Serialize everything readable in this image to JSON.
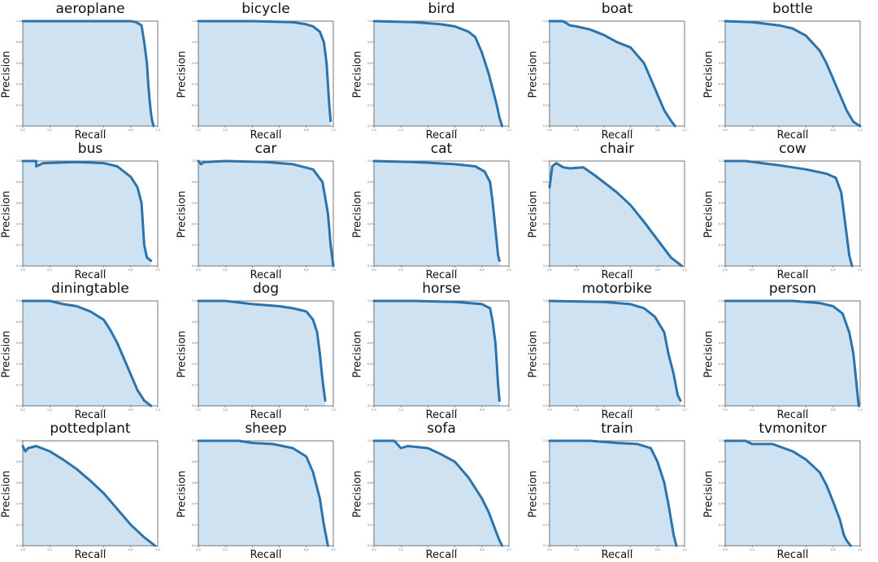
{
  "chart_data": [
    {
      "type": "area",
      "title": "aeroplane",
      "xlabel": "Recall",
      "ylabel": "Precision",
      "xlim": [
        0,
        1
      ],
      "ylim": [
        0,
        1
      ],
      "xticks": [
        "0.0",
        "0.2",
        "0.4",
        "0.6",
        "0.8",
        "1.0"
      ],
      "yticks": [
        "0.0",
        "0.2",
        "0.4",
        "0.6",
        "0.8",
        "1.0"
      ],
      "x": [
        0,
        0.5,
        0.8,
        0.84,
        0.88,
        0.9,
        0.92,
        0.93,
        0.94,
        0.95,
        0.96,
        0.97
      ],
      "y": [
        1.0,
        1.0,
        1.0,
        0.99,
        0.96,
        0.8,
        0.6,
        0.4,
        0.25,
        0.12,
        0.04,
        0.0
      ]
    },
    {
      "type": "area",
      "title": "bicycle",
      "xlabel": "Recall",
      "ylabel": "Precision",
      "xlim": [
        0,
        1
      ],
      "ylim": [
        0,
        1
      ],
      "xticks": [
        "0.0",
        "0.2",
        "0.4",
        "0.6",
        "0.8",
        "1.0"
      ],
      "yticks": [
        "0.0",
        "0.2",
        "0.4",
        "0.6",
        "0.8",
        "1.0"
      ],
      "x": [
        0,
        0.4,
        0.7,
        0.8,
        0.85,
        0.9,
        0.93,
        0.95,
        0.96,
        0.97,
        0.98
      ],
      "y": [
        1.0,
        1.0,
        0.99,
        0.97,
        0.95,
        0.9,
        0.8,
        0.6,
        0.4,
        0.2,
        0.05
      ]
    },
    {
      "type": "area",
      "title": "bird",
      "xlabel": "Recall",
      "ylabel": "Precision",
      "xlim": [
        0,
        1
      ],
      "ylim": [
        0,
        1
      ],
      "xticks": [
        "0.0",
        "0.2",
        "0.4",
        "0.6",
        "0.8",
        "1.0"
      ],
      "yticks": [
        "0.0",
        "0.2",
        "0.4",
        "0.6",
        "0.8",
        "1.0"
      ],
      "x": [
        0,
        0.3,
        0.5,
        0.6,
        0.7,
        0.75,
        0.8,
        0.85,
        0.88,
        0.91,
        0.93,
        0.95
      ],
      "y": [
        1.0,
        0.99,
        0.97,
        0.95,
        0.9,
        0.85,
        0.7,
        0.5,
        0.35,
        0.2,
        0.08,
        0.0
      ]
    },
    {
      "type": "area",
      "title": "boat",
      "xlabel": "Recall",
      "ylabel": "Precision",
      "xlim": [
        0,
        1
      ],
      "ylim": [
        0,
        1
      ],
      "xticks": [
        "0.0",
        "0.2",
        "0.4",
        "0.6",
        "0.8",
        "1.0"
      ],
      "yticks": [
        "0.0",
        "0.2",
        "0.4",
        "0.6",
        "0.8",
        "1.0"
      ],
      "x": [
        0,
        0.1,
        0.15,
        0.2,
        0.3,
        0.4,
        0.5,
        0.6,
        0.7,
        0.75,
        0.8,
        0.85,
        0.9,
        0.93
      ],
      "y": [
        1.0,
        1.0,
        0.96,
        0.95,
        0.92,
        0.87,
        0.8,
        0.75,
        0.6,
        0.45,
        0.3,
        0.15,
        0.05,
        0.0
      ]
    },
    {
      "type": "area",
      "title": "bottle",
      "xlabel": "Recall",
      "ylabel": "Precision",
      "xlim": [
        0,
        1
      ],
      "ylim": [
        0,
        1
      ],
      "xticks": [
        "0.0",
        "0.2",
        "0.4",
        "0.6",
        "0.8",
        "1.0"
      ],
      "yticks": [
        "0.0",
        "0.2",
        "0.4",
        "0.6",
        "0.8",
        "1.0"
      ],
      "x": [
        0,
        0.2,
        0.4,
        0.5,
        0.6,
        0.7,
        0.75,
        0.8,
        0.85,
        0.9,
        0.95,
        1.0
      ],
      "y": [
        1.0,
        0.99,
        0.96,
        0.93,
        0.86,
        0.72,
        0.6,
        0.45,
        0.3,
        0.15,
        0.04,
        0.0
      ]
    },
    {
      "type": "area",
      "title": "bus",
      "xlabel": "Recall",
      "ylabel": "Precision",
      "xlim": [
        0,
        1
      ],
      "ylim": [
        0,
        1
      ],
      "xticks": [
        "0.0",
        "0.2",
        "0.4",
        "0.6",
        "0.8",
        "1.0"
      ],
      "yticks": [
        "0.0",
        "0.2",
        "0.4",
        "0.6",
        "0.8",
        "1.0"
      ],
      "x": [
        0,
        0.1,
        0.1,
        0.15,
        0.4,
        0.6,
        0.7,
        0.8,
        0.85,
        0.88,
        0.9,
        0.92,
        0.95
      ],
      "y": [
        1.0,
        1.0,
        0.95,
        0.98,
        0.99,
        0.98,
        0.95,
        0.85,
        0.75,
        0.6,
        0.2,
        0.08,
        0.05
      ]
    },
    {
      "type": "area",
      "title": "car",
      "xlabel": "Recall",
      "ylabel": "Precision",
      "xlim": [
        0,
        1
      ],
      "ylim": [
        0,
        1
      ],
      "xticks": [
        "0.0",
        "0.2",
        "0.4",
        "0.6",
        "0.8",
        "1.0"
      ],
      "yticks": [
        "0.0",
        "0.2",
        "0.4",
        "0.6",
        "0.8",
        "1.0"
      ],
      "x": [
        0,
        0.02,
        0.04,
        0.2,
        0.5,
        0.7,
        0.85,
        0.92,
        0.96,
        0.98,
        1.0
      ],
      "y": [
        1.0,
        0.97,
        0.99,
        1.0,
        0.99,
        0.97,
        0.92,
        0.8,
        0.5,
        0.2,
        0.0
      ]
    },
    {
      "type": "area",
      "title": "cat",
      "xlabel": "Recall",
      "ylabel": "Precision",
      "xlim": [
        0,
        1
      ],
      "ylim": [
        0,
        1
      ],
      "xticks": [
        "0.0",
        "0.2",
        "0.4",
        "0.6",
        "0.8",
        "1.0"
      ],
      "yticks": [
        "0.0",
        "0.2",
        "0.4",
        "0.6",
        "0.8",
        "1.0"
      ],
      "x": [
        0,
        0.3,
        0.6,
        0.75,
        0.82,
        0.86,
        0.88,
        0.9,
        0.92,
        0.93
      ],
      "y": [
        1.0,
        0.99,
        0.97,
        0.95,
        0.9,
        0.8,
        0.6,
        0.35,
        0.1,
        0.05
      ]
    },
    {
      "type": "area",
      "title": "chair",
      "xlabel": "Recall",
      "ylabel": "Precision",
      "xlim": [
        0,
        1
      ],
      "ylim": [
        0,
        1
      ],
      "xticks": [
        "0.0",
        "0.2",
        "0.4",
        "0.6",
        "0.8",
        "1.0"
      ],
      "yticks": [
        "0.0",
        "0.2",
        "0.4",
        "0.6",
        "0.8",
        "1.0"
      ],
      "x": [
        0,
        0.02,
        0.05,
        0.1,
        0.15,
        0.25,
        0.35,
        0.5,
        0.6,
        0.7,
        0.8,
        0.9,
        0.98
      ],
      "y": [
        0.75,
        0.95,
        0.98,
        0.94,
        0.93,
        0.94,
        0.85,
        0.7,
        0.58,
        0.42,
        0.25,
        0.08,
        0.0
      ]
    },
    {
      "type": "area",
      "title": "cow",
      "xlabel": "Recall",
      "ylabel": "Precision",
      "xlim": [
        0,
        1
      ],
      "ylim": [
        0,
        1
      ],
      "xticks": [
        "0.0",
        "0.2",
        "0.4",
        "0.6",
        "0.8",
        "1.0"
      ],
      "yticks": [
        "0.0",
        "0.2",
        "0.4",
        "0.6",
        "0.8",
        "1.0"
      ],
      "x": [
        0,
        0.15,
        0.4,
        0.6,
        0.75,
        0.82,
        0.86,
        0.88,
        0.9,
        0.92,
        0.94
      ],
      "y": [
        1.0,
        1.0,
        0.96,
        0.92,
        0.88,
        0.84,
        0.7,
        0.5,
        0.3,
        0.1,
        0.0
      ]
    },
    {
      "type": "area",
      "title": "diningtable",
      "xlabel": "Recall",
      "ylabel": "Precision",
      "xlim": [
        0,
        1
      ],
      "ylim": [
        0,
        1
      ],
      "xticks": [
        "0.0",
        "0.2",
        "0.4",
        "0.6",
        "0.8",
        "1.0"
      ],
      "yticks": [
        "0.0",
        "0.2",
        "0.4",
        "0.6",
        "0.8",
        "1.0"
      ],
      "x": [
        0,
        0.2,
        0.3,
        0.4,
        0.5,
        0.6,
        0.65,
        0.7,
        0.75,
        0.8,
        0.85,
        0.9,
        0.95
      ],
      "y": [
        1.0,
        1.0,
        0.97,
        0.95,
        0.9,
        0.82,
        0.72,
        0.6,
        0.45,
        0.3,
        0.15,
        0.05,
        0.0
      ]
    },
    {
      "type": "area",
      "title": "dog",
      "xlabel": "Recall",
      "ylabel": "Precision",
      "xlim": [
        0,
        1
      ],
      "ylim": [
        0,
        1
      ],
      "xticks": [
        "0.0",
        "0.2",
        "0.4",
        "0.6",
        "0.8",
        "1.0"
      ],
      "yticks": [
        "0.0",
        "0.2",
        "0.4",
        "0.6",
        "0.8",
        "1.0"
      ],
      "x": [
        0,
        0.2,
        0.4,
        0.6,
        0.7,
        0.8,
        0.85,
        0.88,
        0.9,
        0.92,
        0.94
      ],
      "y": [
        1.0,
        1.0,
        0.97,
        0.95,
        0.93,
        0.9,
        0.82,
        0.7,
        0.5,
        0.25,
        0.05
      ]
    },
    {
      "type": "area",
      "title": "horse",
      "xlabel": "Recall",
      "ylabel": "Precision",
      "xlim": [
        0,
        1
      ],
      "ylim": [
        0,
        1
      ],
      "xticks": [
        "0.0",
        "0.2",
        "0.4",
        "0.6",
        "0.8",
        "1.0"
      ],
      "yticks": [
        "0.0",
        "0.2",
        "0.4",
        "0.6",
        "0.8",
        "1.0"
      ],
      "x": [
        0,
        0.3,
        0.6,
        0.8,
        0.86,
        0.88,
        0.9,
        0.91,
        0.92,
        0.93
      ],
      "y": [
        1.0,
        1.0,
        0.99,
        0.97,
        0.93,
        0.8,
        0.6,
        0.4,
        0.2,
        0.05
      ]
    },
    {
      "type": "area",
      "title": "motorbike",
      "xlabel": "Recall",
      "ylabel": "Precision",
      "xlim": [
        0,
        1
      ],
      "ylim": [
        0,
        1
      ],
      "xticks": [
        "0.0",
        "0.2",
        "0.4",
        "0.6",
        "0.8",
        "1.0"
      ],
      "yticks": [
        "0.0",
        "0.2",
        "0.4",
        "0.6",
        "0.8",
        "1.0"
      ],
      "x": [
        0,
        0.4,
        0.6,
        0.7,
        0.78,
        0.85,
        0.88,
        0.92,
        0.95,
        0.97
      ],
      "y": [
        1.0,
        0.99,
        0.97,
        0.93,
        0.85,
        0.7,
        0.5,
        0.3,
        0.1,
        0.05
      ]
    },
    {
      "type": "area",
      "title": "person",
      "xlabel": "Recall",
      "ylabel": "Precision",
      "xlim": [
        0,
        1
      ],
      "ylim": [
        0,
        1
      ],
      "xticks": [
        "0.0",
        "0.2",
        "0.4",
        "0.6",
        "0.8",
        "1.0"
      ],
      "yticks": [
        "0.0",
        "0.2",
        "0.4",
        "0.6",
        "0.8",
        "1.0"
      ],
      "x": [
        0,
        0.5,
        0.7,
        0.8,
        0.87,
        0.92,
        0.95,
        0.97,
        0.99
      ],
      "y": [
        1.0,
        1.0,
        0.98,
        0.95,
        0.88,
        0.7,
        0.5,
        0.25,
        0.0
      ]
    },
    {
      "type": "area",
      "title": "pottedplant",
      "xlabel": "Recall",
      "ylabel": "Precision",
      "xlim": [
        0,
        1
      ],
      "ylim": [
        0,
        1
      ],
      "xticks": [
        "0.0",
        "0.2",
        "0.4",
        "0.6",
        "0.8",
        "1.0"
      ],
      "yticks": [
        "0.0",
        "0.2",
        "0.4",
        "0.6",
        "0.8",
        "1.0"
      ],
      "x": [
        0,
        0.02,
        0.04,
        0.1,
        0.2,
        0.3,
        0.4,
        0.5,
        0.6,
        0.7,
        0.8,
        0.9,
        0.98
      ],
      "y": [
        0.95,
        0.9,
        0.93,
        0.95,
        0.9,
        0.82,
        0.73,
        0.62,
        0.5,
        0.35,
        0.2,
        0.08,
        0.0
      ]
    },
    {
      "type": "area",
      "title": "sheep",
      "xlabel": "Recall",
      "ylabel": "Precision",
      "xlim": [
        0,
        1
      ],
      "ylim": [
        0,
        1
      ],
      "xticks": [
        "0.0",
        "0.2",
        "0.4",
        "0.6",
        "0.8",
        "1.0"
      ],
      "yticks": [
        "0.0",
        "0.2",
        "0.4",
        "0.6",
        "0.8",
        "1.0"
      ],
      "x": [
        0,
        0.3,
        0.4,
        0.55,
        0.7,
        0.8,
        0.85,
        0.9,
        0.93,
        0.96
      ],
      "y": [
        1.0,
        1.0,
        0.98,
        0.97,
        0.93,
        0.85,
        0.7,
        0.45,
        0.2,
        0.0
      ]
    },
    {
      "type": "area",
      "title": "sofa",
      "xlabel": "Recall",
      "ylabel": "Precision",
      "xlim": [
        0,
        1
      ],
      "ylim": [
        0,
        1
      ],
      "xticks": [
        "0.0",
        "0.2",
        "0.4",
        "0.6",
        "0.8",
        "1.0"
      ],
      "yticks": [
        "0.0",
        "0.2",
        "0.4",
        "0.6",
        "0.8",
        "1.0"
      ],
      "x": [
        0,
        0.15,
        0.2,
        0.25,
        0.4,
        0.5,
        0.6,
        0.7,
        0.8,
        0.85,
        0.9,
        0.93,
        0.95
      ],
      "y": [
        1.0,
        1.0,
        0.93,
        0.95,
        0.93,
        0.87,
        0.8,
        0.65,
        0.45,
        0.32,
        0.15,
        0.05,
        0.0
      ]
    },
    {
      "type": "area",
      "title": "train",
      "xlabel": "Recall",
      "ylabel": "Precision",
      "xlim": [
        0,
        1
      ],
      "ylim": [
        0,
        1
      ],
      "xticks": [
        "0.0",
        "0.2",
        "0.4",
        "0.6",
        "0.8",
        "1.0"
      ],
      "yticks": [
        "0.0",
        "0.2",
        "0.4",
        "0.6",
        "0.8",
        "1.0"
      ],
      "x": [
        0,
        0.3,
        0.5,
        0.65,
        0.75,
        0.8,
        0.85,
        0.88,
        0.9,
        0.92,
        0.94
      ],
      "y": [
        1.0,
        1.0,
        0.98,
        0.97,
        0.93,
        0.8,
        0.6,
        0.4,
        0.25,
        0.1,
        0.0
      ]
    },
    {
      "type": "area",
      "title": "tvmonitor",
      "xlabel": "Recall",
      "ylabel": "Precision",
      "xlim": [
        0,
        1
      ],
      "ylim": [
        0,
        1
      ],
      "xticks": [
        "0.0",
        "0.2",
        "0.4",
        "0.6",
        "0.8",
        "1.0"
      ],
      "yticks": [
        "0.0",
        "0.2",
        "0.4",
        "0.6",
        "0.8",
        "1.0"
      ],
      "x": [
        0,
        0.15,
        0.2,
        0.35,
        0.5,
        0.6,
        0.7,
        0.75,
        0.8,
        0.85,
        0.88,
        0.9,
        0.93
      ],
      "y": [
        1.0,
        1.0,
        0.97,
        0.97,
        0.9,
        0.82,
        0.7,
        0.58,
        0.42,
        0.25,
        0.1,
        0.05,
        0.0
      ]
    }
  ],
  "colors": {
    "line": "#2a73ad",
    "fill": "#cfe2f2",
    "axis": "#555555",
    "background": "#ffffff"
  }
}
